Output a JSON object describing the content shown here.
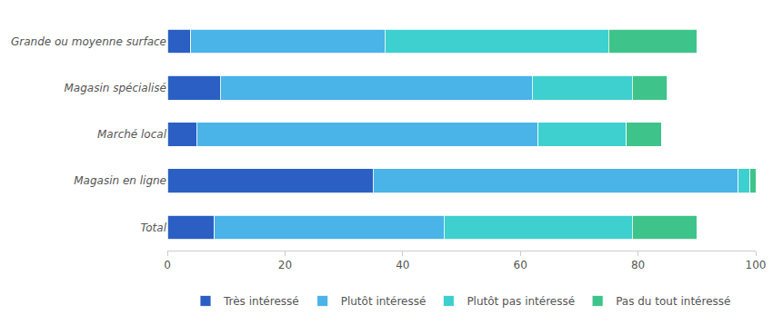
{
  "chart_data": {
    "type": "bar",
    "orientation": "horizontal",
    "stacked": true,
    "categories": [
      "Grande ou moyenne surface",
      "Magasin spécialisé",
      "Marché local",
      "Magasin en ligne",
      "Total"
    ],
    "series": [
      {
        "name": "Très intéressé",
        "color": "#2b5fc4",
        "values": [
          4,
          9,
          5,
          35,
          8
        ]
      },
      {
        "name": "Plutôt intéressé",
        "color": "#4ab3e8",
        "values": [
          33,
          53,
          58,
          62,
          39
        ]
      },
      {
        "name": "Plutôt pas intéressé",
        "color": "#3ecfcf",
        "values": [
          38,
          17,
          15,
          2,
          32
        ]
      },
      {
        "name": "Pas du tout intéressé",
        "color": "#3ec48a",
        "values": [
          15,
          6,
          6,
          1,
          11
        ]
      }
    ],
    "xlim": [
      0,
      100
    ],
    "xticks": [
      0,
      20,
      40,
      60,
      80,
      100
    ],
    "grid": false,
    "legend": "bottom"
  }
}
